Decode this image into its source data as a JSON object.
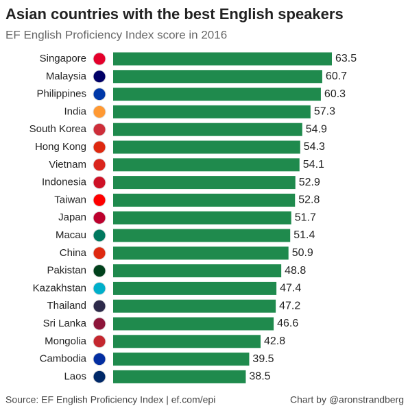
{
  "chart_data": {
    "type": "barh",
    "title": "Asian countries with the best English speakers",
    "subtitle": "EF English Proficiency Index score in 2016",
    "source": "Source: EF English Proficiency Index | ef.com/epi",
    "credit": "Chart by @aronstrandberg",
    "color": "#1f8a4d",
    "categories": [
      "Singapore",
      "Malaysia",
      "Philippines",
      "India",
      "South Korea",
      "Hong Kong",
      "Vietnam",
      "Indonesia",
      "Taiwan",
      "Japan",
      "Macau",
      "China",
      "Pakistan",
      "Kazakhstan",
      "Thailand",
      "Sri Lanka",
      "Mongolia",
      "Cambodia",
      "Laos"
    ],
    "values": [
      63.5,
      60.7,
      60.3,
      57.3,
      54.9,
      54.3,
      54.1,
      52.9,
      52.8,
      51.7,
      51.4,
      50.9,
      48.8,
      47.4,
      47.2,
      46.6,
      42.8,
      39.5,
      38.5
    ]
  }
}
